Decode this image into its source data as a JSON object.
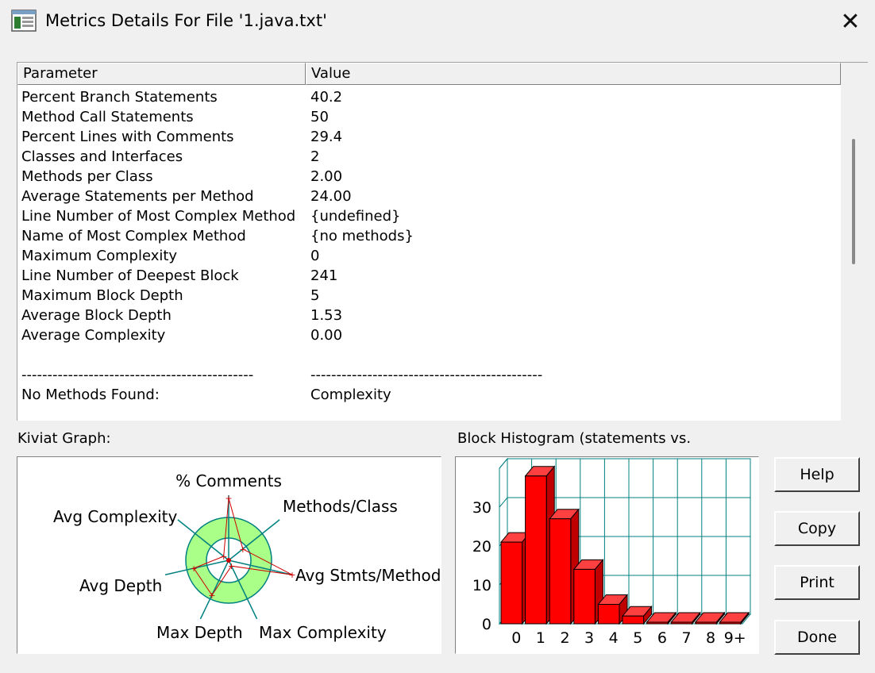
{
  "window": {
    "title": "Metrics Details For File '1.java.txt'",
    "close_symbol": "✕"
  },
  "table": {
    "headers": [
      "Parameter",
      "Value"
    ],
    "rows": [
      [
        "Percent Branch Statements",
        "40.2"
      ],
      [
        "Method Call Statements",
        "50"
      ],
      [
        "Percent Lines with Comments",
        "29.4"
      ],
      [
        "Classes and Interfaces",
        "2"
      ],
      [
        "Methods per Class",
        "2.00"
      ],
      [
        "Average Statements per Method",
        "24.00"
      ],
      [
        "Line Number of Most Complex Method",
        "{undefined}"
      ],
      [
        "Name of Most Complex Method",
        "{no methods}"
      ],
      [
        "Maximum Complexity",
        "0"
      ],
      [
        "Line Number of Deepest Block",
        "241"
      ],
      [
        "Maximum Block Depth",
        "5"
      ],
      [
        "Average Block Depth",
        "1.53"
      ],
      [
        "Average Complexity",
        "0.00"
      ],
      [
        "",
        ""
      ],
      [
        "---------------------------------------------",
        "---------------------------------------------"
      ],
      [
        "No Methods Found:",
        "Complexity"
      ]
    ]
  },
  "kiviat": {
    "label": "Kiviat Graph:",
    "axes": [
      "% Comments",
      "Methods/Class",
      "Avg Stmts/Method",
      "Max Complexity",
      "Max Depth",
      "Avg Depth",
      "Avg Complexity"
    ],
    "ring_color": "#aaff88",
    "axis_color": "#008080",
    "value_line_color": "#cc0000"
  },
  "histogram": {
    "label": "Block Histogram (statements vs.",
    "bar_color": "#ff0000",
    "grid_color": "#008080"
  },
  "chart_data": {
    "type": "bar",
    "categories": [
      "0",
      "1",
      "2",
      "3",
      "4",
      "5",
      "6",
      "7",
      "8",
      "9+"
    ],
    "values": [
      21,
      38,
      27,
      14,
      5,
      2,
      0,
      0,
      0,
      0
    ],
    "ylim": [
      0,
      40
    ],
    "yticks": [
      "0",
      "10",
      "20",
      "30"
    ],
    "grid": true
  },
  "buttons": {
    "help": "Help",
    "copy": "Copy",
    "print": "Print",
    "done": "Done"
  }
}
